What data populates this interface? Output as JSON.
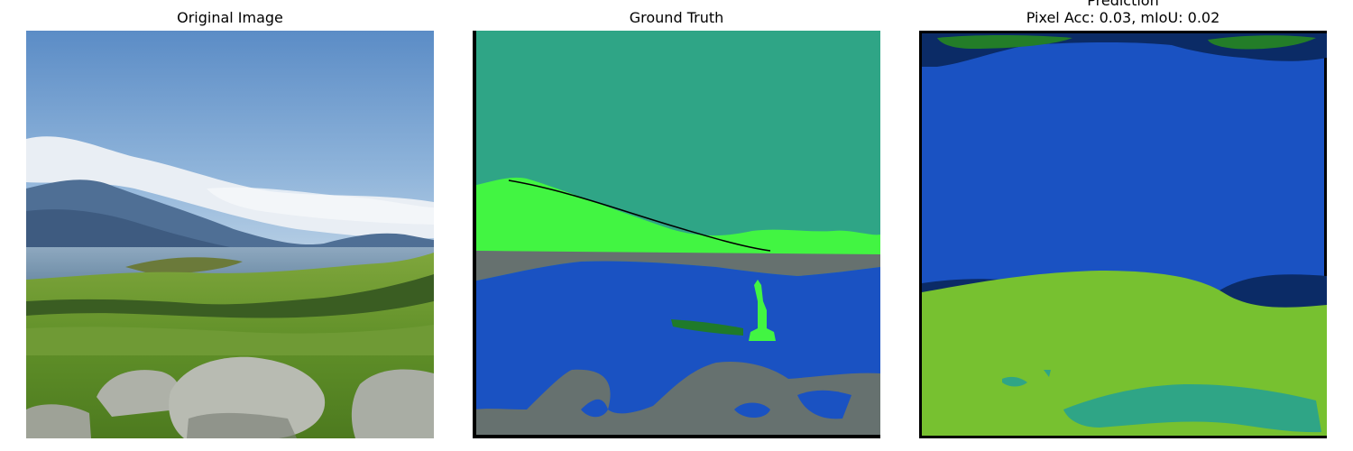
{
  "figure": {
    "panels": [
      {
        "title": "Original Image"
      },
      {
        "title": "Ground Truth"
      },
      {
        "title_line1": "Prediction",
        "title_line2": "Pixel Acc: 0.03, mIoU: 0.02"
      }
    ]
  },
  "colors": {
    "sky": "#6d9ccf",
    "ground_truth_sky": "#2fa586",
    "ground_truth_mountain": "#42f542",
    "ground_truth_rock": "#66716f",
    "ground_truth_water": "#1a52c2",
    "ground_truth_boat": "#1f7a2a",
    "prediction_blue": "#1a52c2",
    "prediction_navy": "#0b2b66",
    "prediction_grass": "#77c130",
    "prediction_teal": "#2fa586",
    "prediction_green": "#237d28"
  }
}
